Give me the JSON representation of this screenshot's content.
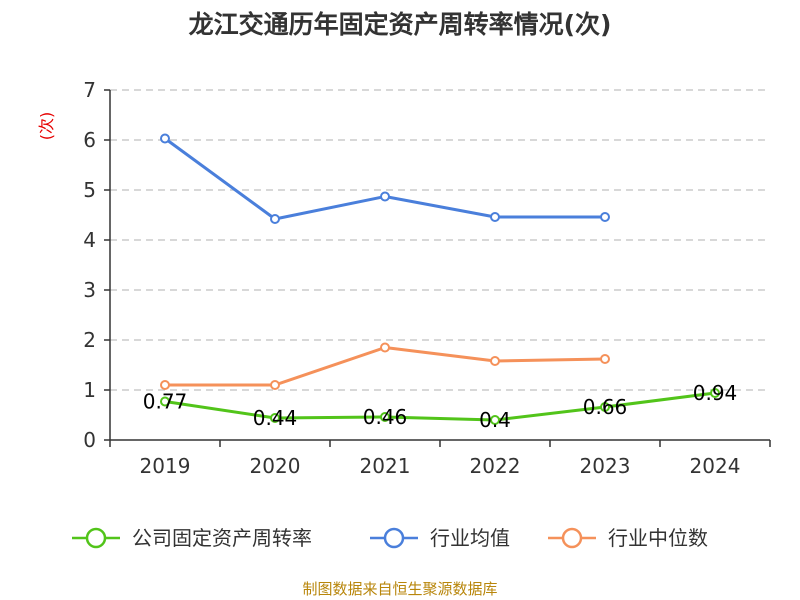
{
  "chart_data": {
    "type": "line",
    "title": "龙江交通历年固定资产周转率情况(次)",
    "ylabel": "(次)",
    "xlabel": "",
    "categories": [
      "2019",
      "2020",
      "2021",
      "2022",
      "2023",
      "2024"
    ],
    "ylim": [
      0,
      7
    ],
    "yticks": [
      "0",
      "1",
      "2",
      "3",
      "4",
      "5",
      "6",
      "7"
    ],
    "grid": true,
    "legend_position": "bottom",
    "series": [
      {
        "name": "公司固定资产周转率",
        "color": "#52c41a",
        "values": [
          0.77,
          0.44,
          0.46,
          0.4,
          0.66,
          0.94
        ],
        "labels": [
          "0.77",
          "0.44",
          "0.46",
          "0.4",
          "0.66",
          "0.94"
        ]
      },
      {
        "name": "行业均值",
        "color": "#4a7fdb",
        "values": [
          6.03,
          4.42,
          4.87,
          4.46,
          4.46,
          null
        ]
      },
      {
        "name": "行业中位数",
        "color": "#f5915a",
        "values": [
          1.1,
          1.1,
          1.85,
          1.58,
          1.62,
          null
        ]
      }
    ]
  },
  "source": "制图数据来自恒生聚源数据库"
}
